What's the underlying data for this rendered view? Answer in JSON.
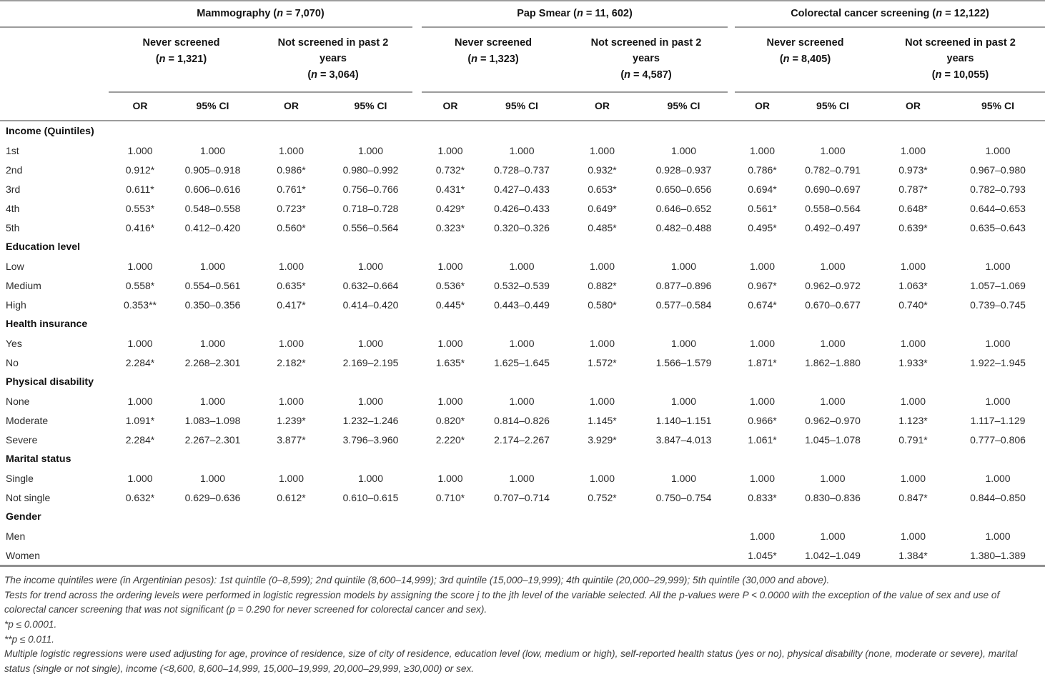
{
  "colors": {
    "rule_gray": "#9c9c9c",
    "footnote_rule_gray": "#8f8f8f",
    "text": "#1c1c1c",
    "footnote_text": "#3d3d3d"
  },
  "table": {
    "groups": [
      {
        "header": {
          "pre": "Mammography (",
          "var": "n",
          "post": " = 7,070)"
        },
        "subgroups": [
          {
            "title": "Never screened",
            "n_pre": "(",
            "n_var": "n",
            "n_post": " = 1,321)"
          },
          {
            "title": "Not screened in past 2 years",
            "n_pre": "(",
            "n_var": "n",
            "n_post": " = 3,064)"
          }
        ]
      },
      {
        "header": {
          "pre": "Pap Smear (",
          "var": "n",
          "post": " = 11, 602)"
        },
        "subgroups": [
          {
            "title": "Never screened",
            "n_pre": "(",
            "n_var": "n",
            "n_post": " = 1,323)"
          },
          {
            "title": "Not screened in past 2 years",
            "n_pre": "(",
            "n_var": "n",
            "n_post": " = 4,587)"
          }
        ]
      },
      {
        "header": {
          "pre": "Colorectal cancer screening (",
          "var": "n",
          "post": " = 12,122)"
        },
        "subgroups": [
          {
            "title": "Never screened",
            "n_pre": "(",
            "n_var": "n",
            "n_post": " = 8,405)"
          },
          {
            "title": "Not screened in past 2 years",
            "n_pre": "(",
            "n_var": "n",
            "n_post": " = 10,055)"
          }
        ]
      }
    ],
    "stat_headers": [
      "OR",
      "95% CI"
    ],
    "sections": [
      {
        "label": "Income (Quintiles)",
        "rows": [
          {
            "label": "1st",
            "values": [
              "1.000",
              "1.000",
              "1.000",
              "1.000",
              "1.000",
              "1.000",
              "1.000",
              "1.000",
              "1.000",
              "1.000",
              "1.000",
              "1.000"
            ]
          },
          {
            "label": "2nd",
            "values": [
              "0.912*",
              "0.905–0.918",
              "0.986*",
              "0.980–0.992",
              "0.732*",
              "0.728–0.737",
              "0.932*",
              "0.928–0.937",
              "0.786*",
              "0.782–0.791",
              "0.973*",
              "0.967–0.980"
            ]
          },
          {
            "label": "3rd",
            "values": [
              "0.611*",
              "0.606–0.616",
              "0.761*",
              "0.756–0.766",
              "0.431*",
              "0.427–0.433",
              "0.653*",
              "0.650–0.656",
              "0.694*",
              "0.690–0.697",
              "0.787*",
              "0.782–0.793"
            ]
          },
          {
            "label": "4th",
            "values": [
              "0.553*",
              "0.548–0.558",
              "0.723*",
              "0.718–0.728",
              "0.429*",
              "0.426–0.433",
              "0.649*",
              "0.646–0.652",
              "0.561*",
              "0.558–0.564",
              "0.648*",
              "0.644–0.653"
            ]
          },
          {
            "label": "5th",
            "values": [
              "0.416*",
              "0.412–0.420",
              "0.560*",
              "0.556–0.564",
              "0.323*",
              "0.320–0.326",
              "0.485*",
              "0.482–0.488",
              "0.495*",
              "0.492–0.497",
              "0.639*",
              "0.635–0.643"
            ]
          }
        ]
      },
      {
        "label": "Education level",
        "rows": [
          {
            "label": "Low",
            "values": [
              "1.000",
              "1.000",
              "1.000",
              "1.000",
              "1.000",
              "1.000",
              "1.000",
              "1.000",
              "1.000",
              "1.000",
              "1.000",
              "1.000"
            ]
          },
          {
            "label": "Medium",
            "values": [
              "0.558*",
              "0.554–0.561",
              "0.635*",
              "0.632–0.664",
              "0.536*",
              "0.532–0.539",
              "0.882*",
              "0.877–0.896",
              "0.967*",
              "0.962–0.972",
              "1.063*",
              "1.057–1.069"
            ]
          },
          {
            "label": "High",
            "values": [
              "0.353**",
              "0.350–0.356",
              "0.417*",
              "0.414–0.420",
              "0.445*",
              "0.443–0.449",
              "0.580*",
              "0.577–0.584",
              "0.674*",
              "0.670–0.677",
              "0.740*",
              "0.739–0.745"
            ]
          }
        ]
      },
      {
        "label": "Health insurance",
        "rows": [
          {
            "label": "Yes",
            "values": [
              "1.000",
              "1.000",
              "1.000",
              "1.000",
              "1.000",
              "1.000",
              "1.000",
              "1.000",
              "1.000",
              "1.000",
              "1.000",
              "1.000"
            ]
          },
          {
            "label": "No",
            "values": [
              "2.284*",
              "2.268–2.301",
              "2.182*",
              "2.169–2.195",
              "1.635*",
              "1.625–1.645",
              "1.572*",
              "1.566–1.579",
              "1.871*",
              "1.862–1.880",
              "1.933*",
              "1.922–1.945"
            ]
          }
        ]
      },
      {
        "label": "Physical disability",
        "rows": [
          {
            "label": "None",
            "values": [
              "1.000",
              "1.000",
              "1.000",
              "1.000",
              "1.000",
              "1.000",
              "1.000",
              "1.000",
              "1.000",
              "1.000",
              "1.000",
              "1.000"
            ]
          },
          {
            "label": "Moderate",
            "values": [
              "1.091*",
              "1.083–1.098",
              "1.239*",
              "1.232–1.246",
              "0.820*",
              "0.814–0.826",
              "1.145*",
              "1.140–1.151",
              "0.966*",
              "0.962–0.970",
              "1.123*",
              "1.117–1.129"
            ]
          },
          {
            "label": "Severe",
            "values": [
              "2.284*",
              "2.267–2.301",
              "3.877*",
              "3.796–3.960",
              "2.220*",
              "2.174–2.267",
              "3.929*",
              "3.847–4.013",
              "1.061*",
              "1.045–1.078",
              "0.791*",
              "0.777–0.806"
            ]
          }
        ]
      },
      {
        "label": "Marital status",
        "rows": [
          {
            "label": "Single",
            "values": [
              "1.000",
              "1.000",
              "1.000",
              "1.000",
              "1.000",
              "1.000",
              "1.000",
              "1.000",
              "1.000",
              "1.000",
              "1.000",
              "1.000"
            ]
          },
          {
            "label": "Not single",
            "values": [
              "0.632*",
              "0.629–0.636",
              "0.612*",
              "0.610–0.615",
              "0.710*",
              "0.707–0.714",
              "0.752*",
              "0.750–0.754",
              "0.833*",
              "0.830–0.836",
              "0.847*",
              "0.844–0.850"
            ]
          }
        ]
      },
      {
        "label": "Gender",
        "rows": [
          {
            "label": "Men",
            "values": [
              "",
              "",
              "",
              "",
              "",
              "",
              "",
              "",
              "1.000",
              "1.000",
              "1.000",
              "1.000"
            ]
          },
          {
            "label": "Women",
            "values": [
              "",
              "",
              "",
              "",
              "",
              "",
              "",
              "",
              "1.045*",
              "1.042–1.049",
              "1.384*",
              "1.380–1.389"
            ]
          }
        ]
      }
    ]
  },
  "footnotes": [
    "The income quintiles were (in Argentinian pesos): 1st quintile (0–8,599); 2nd quintile (8,600–14,999); 3rd quintile (15,000–19,999); 4th quintile (20,000–29,999); 5th quintile (30,000 and above).",
    "Tests for trend across the ordering levels were performed in logistic regression models by assigning the score j to the jth level of the variable selected. All the p-values were P < 0.0000 with the exception of the value of sex and use of colorectal cancer screening that was not significant (p = 0.290 for never screened for colorectal cancer and sex).",
    "*p ≤ 0.0001.",
    "**p ≤ 0.011.",
    "Multiple logistic regressions were used adjusting for age, province of residence, size of city of residence, education level (low, medium or high), self-reported health status (yes or no), physical disability (none, moderate or severe), marital status (single or not single), income (<8,600, 8,600–14,999, 15,000–19,999, 20,000–29,999, ≥30,000) or sex."
  ]
}
